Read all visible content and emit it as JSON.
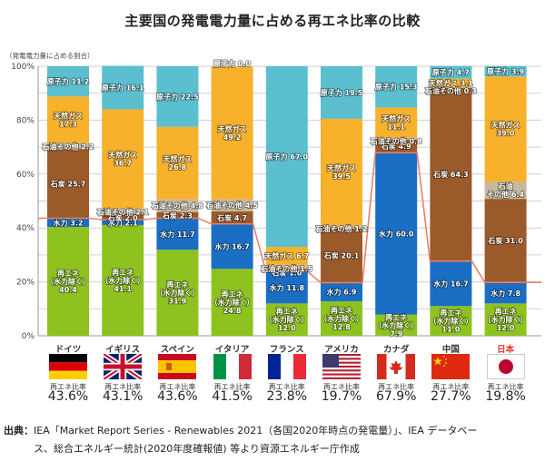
{
  "chart_data": {
    "type": "bar",
    "stacked": true,
    "title": "主要国の発電電力量に占める再エネ比率の比較",
    "ylabel": "（発電電力量に占める割合）",
    "ylim": [
      0,
      100
    ],
    "yticks": [
      "0%",
      "20%",
      "40%",
      "60%",
      "80%",
      "100%"
    ],
    "grid": true,
    "categories": [
      "ドイツ",
      "イギリス",
      "スペイン",
      "イタリア",
      "フランス",
      "アメリカ",
      "カナダ",
      "中国",
      "日本"
    ],
    "highlight_category": "日本",
    "series": [
      {
        "name": "再エネ（水力除く）",
        "color": "#8dc21f",
        "values": [
          40.4,
          41.1,
          31.9,
          24.8,
          12.0,
          12.8,
          7.9,
          11.0,
          12.0
        ]
      },
      {
        "name": "水力",
        "color": "#1a6fc4",
        "values": [
          3.2,
          2.1,
          11.7,
          16.7,
          11.8,
          6.9,
          60.0,
          16.7,
          7.8
        ]
      },
      {
        "name": "石炭",
        "color": "#9b5a2a",
        "values": [
          25.7,
          2.0,
          2.3,
          4.7,
          1.0,
          20.1,
          4.9,
          64.3,
          31.0
        ]
      },
      {
        "name": "石油その他",
        "color": "#c8b89c",
        "values": [
          2.2,
          2.1,
          4.8,
          4.5,
          1.5,
          1.2,
          0.8,
          0.3,
          6.4
        ]
      },
      {
        "name": "天然ガス",
        "color": "#f7b12b",
        "values": [
          17.3,
          36.7,
          26.8,
          49.2,
          6.7,
          39.5,
          11.1,
          3.1,
          39.0
        ]
      },
      {
        "name": "原子力",
        "color": "#5bbfd0",
        "values": [
          11.2,
          16.1,
          22.5,
          0.0,
          67.0,
          19.5,
          15.3,
          4.7,
          3.9
        ]
      }
    ],
    "segment_labels": [
      [
        "再エネ\n（水力除く）\n40.4",
        "水力 3.2",
        "石炭 25.7",
        "石油その他 2.2",
        "天然ガス\n17.3",
        "原子力 11.2"
      ],
      [
        "再エネ\n（水力除く）\n41.1",
        "水力 2.1",
        "石炭 2.0",
        "石油その他 2.1",
        "天然ガス\n36.7",
        "原子力 16.1"
      ],
      [
        "再エネ\n（水力除く）\n31.9",
        "水力 11.7",
        "石炭 2.3",
        "石油その他 4.8",
        "天然ガス\n26.8",
        "原子力 22.5"
      ],
      [
        "再エネ\n（水力除く）\n24.8",
        "水力 16.7",
        "石炭 4.7",
        "石油その他 4.5",
        "天然ガス\n49.2",
        "原子力 0.0"
      ],
      [
        "再エネ\n（水力除く）\n12.0",
        "水力 11.8",
        "石炭 1.0",
        "石油その他 1.5",
        "天然ガス 6.7",
        "原子力 67.0"
      ],
      [
        "再エネ\n（水力除く）\n12.8",
        "水力 6.9",
        "石炭 20.1",
        "石油その他 1.2",
        "天然ガス\n39.5",
        "原子力 19.5"
      ],
      [
        "再エネ\n（水力除く）\n7.9",
        "水力 60.0",
        "石炭 4.9",
        "石油その他 0.8",
        "天然ガス\n11.1",
        "原子力 15.3"
      ],
      [
        "再エネ\n（水力除く）\n11.0",
        "水力 16.7",
        "石炭 64.3",
        "石油その他 0.3",
        "天然ガス 3.1",
        "原子力 4.7"
      ],
      [
        "再エネ\n（水力除く）\n12.0",
        "水力 7.8",
        "石炭 31.0",
        "石油\nその他 6.4",
        "天然ガス\n39.0",
        "原子力 3.9"
      ]
    ],
    "renewable_ratio_line": {
      "name": "再エネ比率",
      "color": "#e8806a",
      "values": [
        43.6,
        43.1,
        43.6,
        41.5,
        23.8,
        19.7,
        67.9,
        27.7,
        19.8
      ]
    }
  },
  "countries": [
    {
      "name": "ドイツ",
      "flag": "germany-flag",
      "rate_label": "再エネ比率",
      "rate": "43.6%"
    },
    {
      "name": "イギリス",
      "flag": "uk-flag",
      "rate_label": "再エネ比率",
      "rate": "43.1%"
    },
    {
      "name": "スペイン",
      "flag": "spain-flag",
      "rate_label": "再エネ比率",
      "rate": "43.6%"
    },
    {
      "name": "イタリア",
      "flag": "italy-flag",
      "rate_label": "再エネ比率",
      "rate": "41.5%"
    },
    {
      "name": "フランス",
      "flag": "france-flag",
      "rate_label": "再エネ比率",
      "rate": "23.8%"
    },
    {
      "name": "アメリカ",
      "flag": "usa-flag",
      "rate_label": "再エネ比率",
      "rate": "19.7%"
    },
    {
      "name": "カナダ",
      "flag": "canada-flag",
      "rate_label": "再エネ比率",
      "rate": "67.9%"
    },
    {
      "name": "中国",
      "flag": "china-flag",
      "rate_label": "再エネ比率",
      "rate": "27.7%"
    },
    {
      "name": "日本",
      "flag": "japan-flag",
      "rate_label": "再エネ比率",
      "rate": "19.8%"
    }
  ],
  "source": {
    "label": "出典：",
    "line1": "IEA「Market Report Series - Renewables 2021（各国2020年時点の発電量）」、IEA データベー",
    "line2": "ス、総合エネルギー統計(2020年度確報値) 等より資源エネルギー庁作成"
  }
}
